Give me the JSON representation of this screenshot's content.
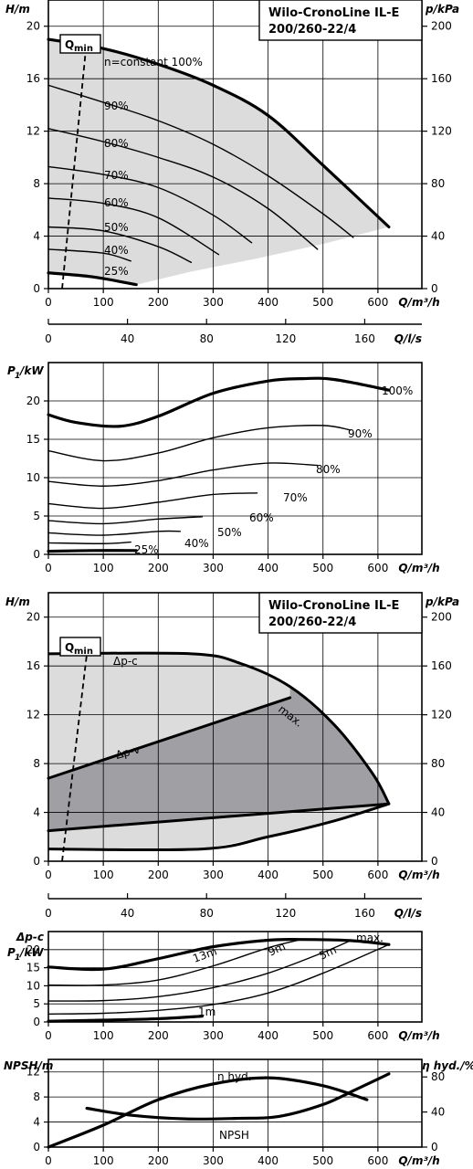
{
  "title_line1": "Wilo-CronoLine IL-E",
  "title_line2": "200/260-22/4",
  "units": {
    "H": "H/m",
    "p": "p/kPa",
    "Q": "Q/m³/h",
    "Qls": "Q/l/s",
    "P1": "/kW",
    "NPSH": "NPSH/m",
    "eta": "η hyd./%",
    "dpc": "Δp-c"
  },
  "labels": {
    "qmin": "Q",
    "qmin_sub": "min",
    "n100": "n=constant 100%",
    "dp_c": "Δp-c",
    "dp_v": "Δp-v",
    "max": "max.",
    "npsh": "NPSH",
    "eta": "η hyd."
  },
  "chart_data": [
    {
      "id": "hq1",
      "type": "line",
      "title": "Wilo-CronoLine IL-E 200/260-22/4",
      "xlabel": "Q/m³/h",
      "ylabel": "H/m",
      "y2label": "p/kPa",
      "xlim": [
        0,
        680
      ],
      "ylim": [
        0,
        22
      ],
      "y2lim": [
        0,
        220
      ],
      "xticks": [
        0,
        100,
        200,
        300,
        400,
        500,
        600
      ],
      "yticks": [
        0,
        4,
        8,
        12,
        16,
        20
      ],
      "y2ticks": [
        0,
        40,
        80,
        120,
        160,
        200
      ],
      "series": [
        {
          "name": "100%",
          "x": [
            0,
            100,
            200,
            300,
            400,
            500,
            620
          ],
          "y": [
            19,
            18.3,
            17.1,
            15.5,
            13.2,
            9.4,
            4.7
          ]
        },
        {
          "name": "90%",
          "x": [
            0,
            100,
            200,
            300,
            400,
            500,
            555
          ],
          "y": [
            15.5,
            14.2,
            12.8,
            11.0,
            8.6,
            5.7,
            3.9
          ]
        },
        {
          "name": "80%",
          "x": [
            0,
            100,
            200,
            300,
            400,
            490
          ],
          "y": [
            12.2,
            11.2,
            10.0,
            8.5,
            6.1,
            3.0
          ]
        },
        {
          "name": "70%",
          "x": [
            0,
            100,
            200,
            300,
            370
          ],
          "y": [
            9.3,
            8.7,
            7.7,
            5.6,
            3.5
          ]
        },
        {
          "name": "60%",
          "x": [
            0,
            100,
            200,
            310
          ],
          "y": [
            6.9,
            6.5,
            5.4,
            2.6
          ]
        },
        {
          "name": "50%",
          "x": [
            0,
            100,
            200,
            260
          ],
          "y": [
            4.7,
            4.4,
            3.2,
            2.0
          ]
        },
        {
          "name": "40%",
          "x": [
            0,
            100,
            150
          ],
          "y": [
            3.0,
            2.7,
            2.1
          ]
        },
        {
          "name": "25%",
          "x": [
            0,
            80,
            160
          ],
          "y": [
            1.2,
            0.9,
            0.3
          ]
        }
      ],
      "qmin_line": {
        "x": [
          25,
          70
        ],
        "y": [
          0,
          19
        ]
      },
      "annotations": [
        "n=constant 100%",
        "90%",
        "80%",
        "70%",
        "60%",
        "50%",
        "40%",
        "25%"
      ]
    },
    {
      "id": "qls1",
      "type": "axis",
      "xlabel": "Q/l/s",
      "xlim": [
        0,
        188.9
      ],
      "xticks": [
        0,
        40,
        80,
        120,
        160
      ]
    },
    {
      "id": "p1a",
      "type": "line",
      "xlabel": "Q/m³/h",
      "ylabel": "P1/kW",
      "xlim": [
        0,
        680
      ],
      "ylim": [
        0,
        25
      ],
      "xticks": [
        0,
        100,
        200,
        300,
        400,
        500,
        600
      ],
      "yticks": [
        0,
        5,
        10,
        15,
        20
      ],
      "series": [
        {
          "name": "100%",
          "x": [
            0,
            50,
            130,
            200,
            300,
            400,
            460,
            520,
            620
          ],
          "y": [
            18.2,
            17.2,
            16.7,
            18.0,
            21.0,
            22.6,
            22.9,
            22.8,
            21.4
          ]
        },
        {
          "name": "90%",
          "x": [
            0,
            100,
            200,
            300,
            400,
            500,
            550
          ],
          "y": [
            13.5,
            12.2,
            13.2,
            15.2,
            16.5,
            16.8,
            16.2
          ]
        },
        {
          "name": "80%",
          "x": [
            0,
            100,
            200,
            300,
            400,
            490
          ],
          "y": [
            9.5,
            8.9,
            9.6,
            11.0,
            11.9,
            11.6
          ]
        },
        {
          "name": "70%",
          "x": [
            0,
            100,
            200,
            300,
            380
          ],
          "y": [
            6.6,
            6.0,
            6.8,
            7.8,
            8.0
          ]
        },
        {
          "name": "60%",
          "x": [
            0,
            100,
            200,
            280
          ],
          "y": [
            4.4,
            4.0,
            4.6,
            4.9
          ]
        },
        {
          "name": "50%",
          "x": [
            0,
            100,
            200,
            240
          ],
          "y": [
            2.8,
            2.5,
            3.0,
            3.0
          ]
        },
        {
          "name": "40%",
          "x": [
            0,
            100,
            150
          ],
          "y": [
            1.5,
            1.4,
            1.6
          ]
        },
        {
          "name": "25%",
          "x": [
            0,
            80,
            160
          ],
          "y": [
            0.4,
            0.5,
            0.5
          ]
        }
      ],
      "annotations": [
        "100%",
        "90%",
        "80%",
        "70%",
        "60%",
        "50%",
        "40%",
        "25%"
      ]
    },
    {
      "id": "hq2",
      "type": "area",
      "title": "Wilo-CronoLine IL-E 200/260-22/4",
      "xlabel": "Q/m³/h",
      "ylabel": "H/m",
      "y2label": "p/kPa",
      "xlim": [
        0,
        680
      ],
      "ylim": [
        0,
        22
      ],
      "y2lim": [
        0,
        220
      ],
      "xticks": [
        0,
        100,
        200,
        300,
        400,
        500,
        600
      ],
      "yticks": [
        0,
        4,
        8,
        12,
        16,
        20
      ],
      "y2ticks": [
        0,
        40,
        80,
        120,
        160,
        200
      ],
      "series": [
        {
          "name": "Δp-c",
          "x": [
            0,
            260
          ],
          "y": [
            17,
            17
          ]
        },
        {
          "name": "max.",
          "x": [
            260,
            350,
            440,
            520,
            590,
            620
          ],
          "y": [
            17,
            16.2,
            14.3,
            11.2,
            7.2,
            4.7
          ]
        },
        {
          "name": "Δp-v",
          "x": [
            0,
            440
          ],
          "y": [
            6.8,
            13.4
          ]
        },
        {
          "name": "min",
          "x": [
            0,
            280,
            400,
            520,
            620
          ],
          "y": [
            1,
            1,
            2.0,
            3.3,
            4.7
          ]
        },
        {
          "name": "Δp-v min",
          "x": [
            0,
            620
          ],
          "y": [
            2.5,
            4.7
          ]
        }
      ],
      "qmin_line": {
        "x": [
          25,
          70
        ],
        "y": [
          0,
          17
        ]
      }
    },
    {
      "id": "qls2",
      "type": "axis",
      "xlabel": "Q/l/s",
      "xlim": [
        0,
        188.9
      ],
      "xticks": [
        0,
        40,
        80,
        120,
        160
      ]
    },
    {
      "id": "p1b",
      "type": "line",
      "xlabel": "Q/m³/h",
      "ylabel": "P1/kW",
      "xlim": [
        0,
        680
      ],
      "ylim": [
        0,
        25
      ],
      "xticks": [
        0,
        100,
        200,
        300,
        400,
        500,
        600
      ],
      "yticks": [
        0,
        5,
        10,
        15,
        20
      ],
      "series": [
        {
          "name": "max.",
          "x": [
            0,
            100,
            200,
            300,
            400,
            460,
            550,
            620
          ],
          "y": [
            15.2,
            14.6,
            17.5,
            20.8,
            22.6,
            22.8,
            22.5,
            21.4
          ]
        },
        {
          "name": "13m",
          "x": [
            0,
            100,
            200,
            300,
            400,
            460
          ],
          "y": [
            10.2,
            10.2,
            11.6,
            15.5,
            20.5,
            22.8
          ]
        },
        {
          "name": "9m",
          "x": [
            0,
            100,
            200,
            300,
            400,
            500,
            550
          ],
          "y": [
            5.8,
            5.9,
            7.0,
            9.5,
            13.5,
            19.2,
            22.5
          ]
        },
        {
          "name": "5m",
          "x": [
            0,
            100,
            200,
            300,
            400,
            500,
            620
          ],
          "y": [
            2.2,
            2.4,
            3.2,
            4.8,
            8.0,
            13.5,
            21.4
          ]
        },
        {
          "name": "1m",
          "x": [
            0,
            100,
            200,
            280
          ],
          "y": [
            0.2,
            0.5,
            0.9,
            1.6
          ]
        }
      ],
      "annotations": [
        "max.",
        "13m",
        "9m",
        "5m",
        "1m"
      ]
    },
    {
      "id": "npsh",
      "type": "line",
      "xlabel": "Q/m³/h",
      "ylabel": "NPSH/m",
      "y2label": "η hyd./%",
      "xlim": [
        0,
        680
      ],
      "ylim": [
        0,
        14
      ],
      "y2lim": [
        0,
        100
      ],
      "xticks": [
        0,
        100,
        200,
        300,
        400,
        500,
        600
      ],
      "yticks": [
        0,
        4,
        8,
        12
      ],
      "y2ticks": [
        0,
        40,
        80
      ],
      "series": [
        {
          "name": "NPSH",
          "x": [
            70,
            150,
            250,
            350,
            420,
            500,
            560,
            620
          ],
          "y": [
            6.2,
            5.1,
            4.5,
            4.6,
            4.9,
            6.8,
            9.2,
            11.7
          ]
        },
        {
          "name": "η hyd.",
          "x": [
            0,
            100,
            200,
            300,
            400,
            500,
            580
          ],
          "y": [
            0,
            25,
            54,
            72,
            79,
            70,
            54
          ]
        }
      ],
      "annotations": [
        "NPSH",
        "η hyd."
      ]
    }
  ]
}
